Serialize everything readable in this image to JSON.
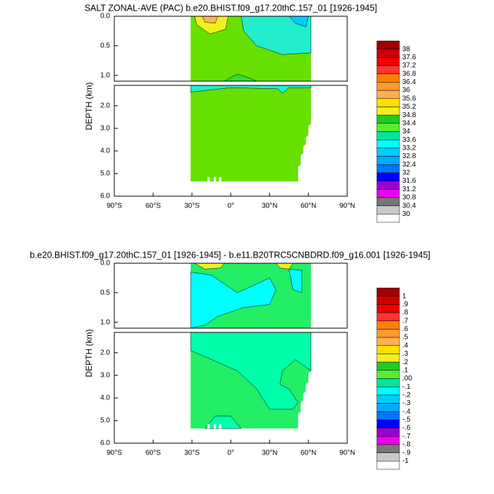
{
  "chart_data": [
    {
      "type": "contour",
      "title": "SALT ZONAL-AVE (PAC) b.e20.BHIST.f09_g17.20thC.157_01 [1926-1945]",
      "ylabel": "DEPTH (km)",
      "xlim": [
        -90,
        90
      ],
      "xticks": [
        {
          "value": -90,
          "label": "90°S"
        },
        {
          "value": -60,
          "label": "60°S"
        },
        {
          "value": -30,
          "label": "30°S"
        },
        {
          "value": 0,
          "label": "0°"
        },
        {
          "value": 30,
          "label": "30°N"
        },
        {
          "value": 60,
          "label": "60°N"
        },
        {
          "value": 90,
          "label": "90°N"
        }
      ],
      "ylim": [
        0,
        1.1
      ],
      "yticks": [
        {
          "value": 0,
          "label": "0.0"
        },
        0.5,
        {
          "value": 1,
          "label": "1.0"
        }
      ],
      "lower_ylim": [
        1.1,
        6
      ],
      "lower_yticks": [
        {
          "value": 2,
          "label": "2.0"
        },
        {
          "value": 3,
          "label": "3.0"
        },
        {
          "value": 4,
          "label": "4.0"
        },
        {
          "value": 5,
          "label": "5.0"
        },
        {
          "value": 6,
          "label": "6.0"
        }
      ],
      "levels": [
        38,
        37.6,
        37.2,
        36.8,
        36.4,
        36,
        35.6,
        35.2,
        34.8,
        34.4,
        34,
        33.6,
        33.2,
        32.8,
        32.4,
        32,
        31.6,
        31.2,
        30.8,
        30.4,
        30
      ],
      "colors": [
        "#a00000",
        "#cc0000",
        "#ee0000",
        "#ff3333",
        "#ff7f00",
        "#ff9933",
        "#ffb050",
        "#ffe000",
        "#f0f020",
        "#22cc22",
        "#55ee33",
        "#00e6a0",
        "#00ffff",
        "#00ccff",
        "#00aaff",
        "#0077ff",
        "#0000ff",
        "#9a00d0",
        "#ee00ee",
        "#777777",
        "#c8c8c8",
        "#ffffff"
      ]
    },
    {
      "type": "contour",
      "title": "b.e20.BHIST.f09_g17.20thC.157_01 [1926-1945] - b.e11.B20TRC5CNBDRD.f09_g16.001 [1926-1945]",
      "ylabel": "DEPTH (km)",
      "xlim": [
        -90,
        90
      ],
      "xticks": [
        {
          "value": -90,
          "label": "90°S"
        },
        {
          "value": -60,
          "label": "60°S"
        },
        {
          "value": -30,
          "label": "30°S"
        },
        {
          "value": 0,
          "label": "0°"
        },
        {
          "value": 30,
          "label": "30°N"
        },
        {
          "value": 60,
          "label": "60°N"
        },
        {
          "value": 90,
          "label": "90°N"
        }
      ],
      "ylim": [
        0,
        1.1
      ],
      "yticks": [
        {
          "value": 0,
          "label": "0.0"
        },
        0.5,
        {
          "value": 1,
          "label": "1.0"
        }
      ],
      "lower_ylim": [
        1.1,
        6
      ],
      "lower_yticks": [
        {
          "value": 2,
          "label": "2.0"
        },
        {
          "value": 3,
          "label": "3.0"
        },
        {
          "value": 4,
          "label": "4.0"
        },
        {
          "value": 5,
          "label": "5.0"
        },
        {
          "value": 6,
          "label": "6.0"
        }
      ],
      "levels": [
        1,
        {
          "value": 0.9,
          "label": ".9"
        },
        {
          "value": 0.8,
          "label": ".8"
        },
        {
          "value": 0.7,
          "label": ".7"
        },
        {
          "value": 0.6,
          "label": ".6"
        },
        {
          "value": 0.5,
          "label": ".5"
        },
        {
          "value": 0.4,
          "label": ".4"
        },
        {
          "value": 0.3,
          "label": ".3"
        },
        {
          "value": 0.2,
          "label": ".2"
        },
        {
          "value": 0.1,
          "label": ".1"
        },
        {
          "value": 0,
          "label": ".00"
        },
        {
          "value": -0.1,
          "label": "-.1"
        },
        {
          "value": -0.2,
          "label": "-.2"
        },
        {
          "value": -0.3,
          "label": "-.3"
        },
        {
          "value": -0.4,
          "label": "-.4"
        },
        {
          "value": -0.5,
          "label": "-.5"
        },
        {
          "value": -0.6,
          "label": "-.6"
        },
        {
          "value": -0.7,
          "label": "-.7"
        },
        {
          "value": -0.8,
          "label": "-.8"
        },
        {
          "value": -0.9,
          "label": "-.9"
        },
        -1
      ],
      "colors": [
        "#a00000",
        "#cc0000",
        "#ee0000",
        "#ff3333",
        "#ff7f00",
        "#ff9933",
        "#ffb050",
        "#ffe000",
        "#f0f020",
        "#22cc22",
        "#55ee33",
        "#00e6a0",
        "#00ffff",
        "#00ccff",
        "#00aaff",
        "#0077ff",
        "#0000ff",
        "#9a00d0",
        "#ee00ee",
        "#777777",
        "#c8c8c8",
        "#ffffff"
      ]
    }
  ]
}
